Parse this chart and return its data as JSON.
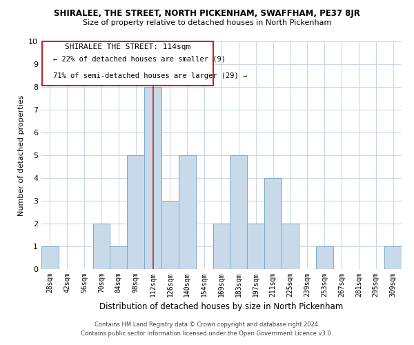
{
  "title": "SHIRALEE, THE STREET, NORTH PICKENHAM, SWAFFHAM, PE37 8JR",
  "subtitle": "Size of property relative to detached houses in North Pickenham",
  "xlabel": "Distribution of detached houses by size in North Pickenham",
  "ylabel": "Number of detached properties",
  "bar_color": "#c8daea",
  "bar_edge_color": "#7aaac8",
  "background_color": "#ffffff",
  "grid_color": "#c8d8e8",
  "annotation_box_color": "#ffffff",
  "annotation_box_edge": "#cc2222",
  "highlight_line_color": "#cc2222",
  "categories": [
    "28sqm",
    "42sqm",
    "56sqm",
    "70sqm",
    "84sqm",
    "98sqm",
    "112sqm",
    "126sqm",
    "140sqm",
    "154sqm",
    "169sqm",
    "183sqm",
    "197sqm",
    "211sqm",
    "225sqm",
    "239sqm",
    "253sqm",
    "267sqm",
    "281sqm",
    "295sqm",
    "309sqm"
  ],
  "values": [
    1,
    0,
    0,
    2,
    1,
    5,
    8,
    3,
    5,
    0,
    2,
    5,
    2,
    4,
    2,
    0,
    1,
    0,
    0,
    0,
    1
  ],
  "ylim": [
    0,
    10
  ],
  "yticks": [
    0,
    1,
    2,
    3,
    4,
    5,
    6,
    7,
    8,
    9,
    10
  ],
  "annotation_title": "SHIRALEE THE STREET: 114sqm",
  "annotation_line1": "← 22% of detached houses are smaller (9)",
  "annotation_line2": "71% of semi-detached houses are larger (29) →",
  "highlight_bar_index": 6,
  "footer_line1": "Contains HM Land Registry data © Crown copyright and database right 2024.",
  "footer_line2": "Contains public sector information licensed under the Open Government Licence v3.0."
}
